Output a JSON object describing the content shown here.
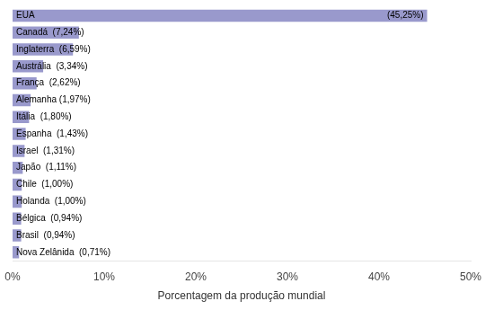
{
  "chart_data": {
    "type": "bar",
    "orientation": "horizontal",
    "categories": [
      "Nova Zelânida  (0,71%)",
      "Brasil  (0,94%)",
      "Bélgica  (0,94%)",
      "Holanda  (1,00%)",
      "Chile  (1,00%)",
      "Japão  (1,11%)",
      "Israel  (1,31%)",
      "Espanha  (1,43%)",
      "Itália  (1,80%)",
      "Alemanha (1,97%)",
      "França  (2,62%)",
      "Austrália  (3,34%)",
      "Inglaterra  (6,59%)",
      "Canadá  (7,24%)",
      "EUA"
    ],
    "values": [
      0.71,
      0.94,
      0.94,
      1.0,
      1.0,
      1.11,
      1.31,
      1.43,
      1.8,
      1.97,
      2.62,
      3.34,
      6.59,
      7.24,
      45.25
    ],
    "color": "#9999cc",
    "x_label": "Porcentagem da produção mundial",
    "xlim": [
      0,
      50
    ],
    "xticks": [
      {
        "value": 0,
        "label": "0%"
      },
      {
        "value": 10,
        "label": "10%"
      },
      {
        "value": 20,
        "label": "20%"
      },
      {
        "value": 30,
        "label": "30%"
      },
      {
        "value": 40,
        "label": "40%"
      },
      {
        "value": 50,
        "label": "50%"
      }
    ],
    "annotations": [
      {
        "text": "(45,25%)",
        "category": "EUA"
      }
    ],
    "grid": false,
    "legend": false,
    "tick_labels": "x"
  }
}
